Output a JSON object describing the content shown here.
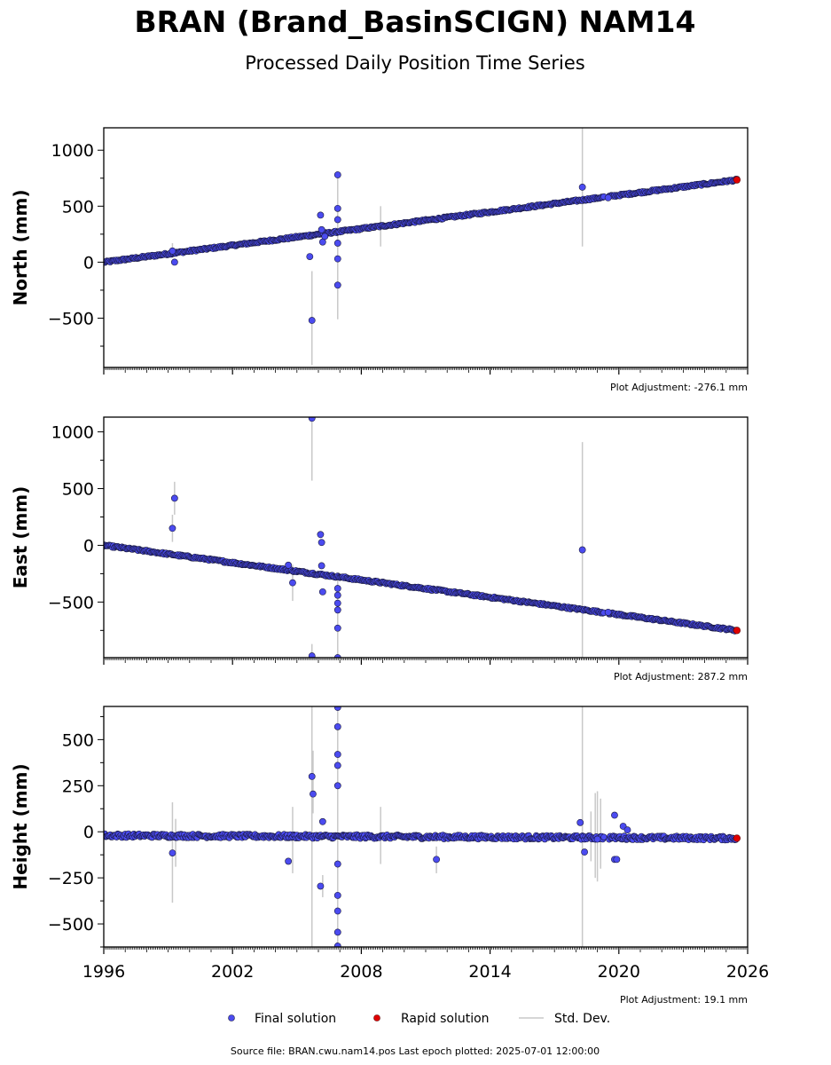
{
  "title": "BRAN (Brand_BasinSCIGN) NAM14",
  "subtitle": "Processed Daily Position Time Series",
  "legend": {
    "final": "Final solution",
    "rapid": "Rapid solution",
    "std": "Std. Dev."
  },
  "footer": "Source file: BRAN.cwu.nam14.pos  Last epoch plotted: 2025-07-01 12:00:00",
  "colors": {
    "final": "#4b4bf0",
    "final_edge": "#1a1a40",
    "rapid": "#e00000",
    "std": "#c8c8c8"
  },
  "chart_data": [
    {
      "type": "scatter",
      "component": "north",
      "ylabel": "North (mm)",
      "xlim": [
        1996,
        2026
      ],
      "ylim": [
        -940,
        1200
      ],
      "xticks": [
        1996,
        2002,
        2008,
        2014,
        2020,
        2026
      ],
      "yticks": [
        -500,
        0,
        500,
        1000
      ],
      "adjustment": "Plot Adjustment: -276.1 mm",
      "trend": {
        "x": [
          1996.0,
          2025.5
        ],
        "y": [
          0,
          735
        ]
      },
      "gap": [
        2019.3,
        2019.5
      ],
      "rapid": [
        {
          "x": 2025.5,
          "y": 735
        }
      ],
      "outliers": [
        {
          "x": 1999.2,
          "y": 100
        },
        {
          "x": 1999.3,
          "y": 0
        },
        {
          "x": 2005.6,
          "y": 50
        },
        {
          "x": 2005.7,
          "y": -520
        },
        {
          "x": 2006.1,
          "y": 420
        },
        {
          "x": 2006.15,
          "y": 290
        },
        {
          "x": 2006.2,
          "y": 180
        },
        {
          "x": 2006.3,
          "y": 230
        },
        {
          "x": 2006.9,
          "y": 780
        },
        {
          "x": 2006.9,
          "y": 480
        },
        {
          "x": 2006.9,
          "y": 380
        },
        {
          "x": 2006.9,
          "y": 170
        },
        {
          "x": 2006.9,
          "y": 30
        },
        {
          "x": 2006.9,
          "y": -205
        },
        {
          "x": 2018.3,
          "y": 670
        },
        {
          "x": 2019.5,
          "y": 575
        }
      ],
      "errorbars": [
        {
          "x": 1999.2,
          "lo": 50,
          "hi": 170
        },
        {
          "x": 2005.7,
          "lo": -920,
          "hi": -80
        },
        {
          "x": 2006.9,
          "lo": -510,
          "hi": 800
        },
        {
          "x": 2008.9,
          "lo": 140,
          "hi": 500
        },
        {
          "x": 2018.3,
          "lo": 140,
          "hi": 1200
        }
      ]
    },
    {
      "type": "scatter",
      "component": "east",
      "ylabel": "East (mm)",
      "xlim": [
        1996,
        2026
      ],
      "ylim": [
        -990,
        1130
      ],
      "xticks": [
        1996,
        2002,
        2008,
        2014,
        2020,
        2026
      ],
      "yticks": [
        -500,
        0,
        500,
        1000
      ],
      "adjustment": "Plot Adjustment: 287.2 mm",
      "trend": {
        "x": [
          1996.0,
          2025.5
        ],
        "y": [
          0,
          -750
        ]
      },
      "gap": [
        2019.3,
        2019.5
      ],
      "rapid": [
        {
          "x": 2025.5,
          "y": -750
        }
      ],
      "outliers": [
        {
          "x": 1999.2,
          "y": 150
        },
        {
          "x": 1999.3,
          "y": 415
        },
        {
          "x": 2004.6,
          "y": -175
        },
        {
          "x": 2004.8,
          "y": -330
        },
        {
          "x": 2005.7,
          "y": 1120
        },
        {
          "x": 2005.7,
          "y": -975
        },
        {
          "x": 2006.1,
          "y": 95
        },
        {
          "x": 2006.15,
          "y": 25
        },
        {
          "x": 2006.15,
          "y": -180
        },
        {
          "x": 2006.2,
          "y": -410
        },
        {
          "x": 2006.9,
          "y": -380
        },
        {
          "x": 2006.9,
          "y": -440
        },
        {
          "x": 2006.9,
          "y": -510
        },
        {
          "x": 2006.9,
          "y": -570
        },
        {
          "x": 2006.9,
          "y": -730
        },
        {
          "x": 2006.9,
          "y": -990
        },
        {
          "x": 2018.3,
          "y": -40
        },
        {
          "x": 2019.5,
          "y": -590
        }
      ],
      "errorbars": [
        {
          "x": 1999.2,
          "lo": 30,
          "hi": 270
        },
        {
          "x": 1999.3,
          "lo": 270,
          "hi": 560
        },
        {
          "x": 2004.8,
          "lo": -490,
          "hi": -170
        },
        {
          "x": 2005.7,
          "lo": 570,
          "hi": 1130
        },
        {
          "x": 2005.7,
          "lo": -990,
          "hi": -870
        },
        {
          "x": 2006.9,
          "lo": -990,
          "hi": -250
        },
        {
          "x": 2018.3,
          "lo": -990,
          "hi": 910
        }
      ]
    },
    {
      "type": "scatter",
      "component": "height",
      "ylabel": "Height (mm)",
      "xlim": [
        1996,
        2026
      ],
      "ylim": [
        -625,
        680
      ],
      "xticks": [
        1996,
        2002,
        2008,
        2014,
        2020,
        2026
      ],
      "yticks": [
        -500,
        -250,
        0,
        250,
        500
      ],
      "adjustment": "Plot Adjustment: 19.1 mm",
      "trend": {
        "x": [
          1996.0,
          2025.5
        ],
        "y": [
          -20,
          -35
        ]
      },
      "gap": [
        2019.3,
        2019.5
      ],
      "rapid": [
        {
          "x": 2025.5,
          "y": -35
        }
      ],
      "outliers": [
        {
          "x": 1999.2,
          "y": -115
        },
        {
          "x": 2004.6,
          "y": -160
        },
        {
          "x": 2005.7,
          "y": 300
        },
        {
          "x": 2005.75,
          "y": 205
        },
        {
          "x": 2006.1,
          "y": -295
        },
        {
          "x": 2006.2,
          "y": 55
        },
        {
          "x": 2006.9,
          "y": 675
        },
        {
          "x": 2006.9,
          "y": 570
        },
        {
          "x": 2006.9,
          "y": 420
        },
        {
          "x": 2006.9,
          "y": 360
        },
        {
          "x": 2006.9,
          "y": 250
        },
        {
          "x": 2006.9,
          "y": -175
        },
        {
          "x": 2006.9,
          "y": -345
        },
        {
          "x": 2006.9,
          "y": -430
        },
        {
          "x": 2006.9,
          "y": -545
        },
        {
          "x": 2006.9,
          "y": -620
        },
        {
          "x": 2011.5,
          "y": -150
        },
        {
          "x": 2018.2,
          "y": 50
        },
        {
          "x": 2018.4,
          "y": -110
        },
        {
          "x": 2019.0,
          "y": -40
        },
        {
          "x": 2019.8,
          "y": 90
        },
        {
          "x": 2019.8,
          "y": -150
        },
        {
          "x": 2019.9,
          "y": -150
        },
        {
          "x": 2020.2,
          "y": 30
        },
        {
          "x": 2020.4,
          "y": 10
        }
      ],
      "errorbars": [
        {
          "x": 1999.2,
          "lo": -385,
          "hi": 160
        },
        {
          "x": 1999.35,
          "lo": -190,
          "hi": 70
        },
        {
          "x": 2004.8,
          "lo": -225,
          "hi": 135
        },
        {
          "x": 2005.7,
          "lo": -625,
          "hi": 680
        },
        {
          "x": 2005.75,
          "lo": 100,
          "hi": 440
        },
        {
          "x": 2006.2,
          "lo": -355,
          "hi": -235
        },
        {
          "x": 2006.9,
          "lo": -625,
          "hi": 680
        },
        {
          "x": 2008.9,
          "lo": -175,
          "hi": 135
        },
        {
          "x": 2011.5,
          "lo": -225,
          "hi": -80
        },
        {
          "x": 2018.3,
          "lo": -625,
          "hi": 680
        },
        {
          "x": 2018.7,
          "lo": -160,
          "hi": 110
        },
        {
          "x": 2018.9,
          "lo": -250,
          "hi": 210
        },
        {
          "x": 2019.0,
          "lo": -270,
          "hi": 220
        },
        {
          "x": 2019.15,
          "lo": -200,
          "hi": 180
        }
      ]
    }
  ]
}
